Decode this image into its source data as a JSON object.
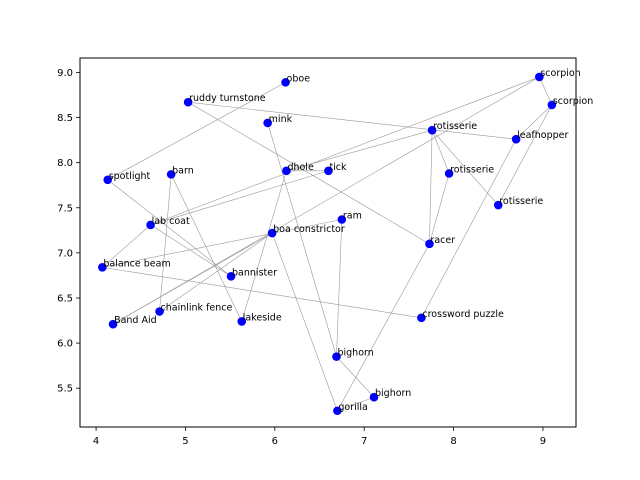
{
  "chart_data": {
    "type": "scatter",
    "title": "",
    "xlabel": "",
    "ylabel": "",
    "xlim": [
      3.82,
      9.37
    ],
    "ylim": [
      5.07,
      9.16
    ],
    "xticks": [
      4,
      5,
      6,
      7,
      8,
      9
    ],
    "yticks": [
      5.5,
      6.0,
      6.5,
      7.0,
      7.5,
      8.0,
      8.5,
      9.0
    ],
    "xtick_labels": [
      "4",
      "5",
      "6",
      "7",
      "8",
      "9"
    ],
    "ytick_labels": [
      "5.5",
      "6.0",
      "6.5",
      "7.0",
      "7.5",
      "8.0",
      "8.5",
      "9.0"
    ],
    "marker_color": "#0000ff",
    "line_color": "#999999",
    "grid": false,
    "points": [
      {
        "label": "oboe",
        "x": 6.12,
        "y": 8.89
      },
      {
        "label": "ruddy turnstone",
        "x": 5.03,
        "y": 8.67
      },
      {
        "label": "mink",
        "x": 5.92,
        "y": 8.44
      },
      {
        "label": "scorpion",
        "x": 8.96,
        "y": 8.95
      },
      {
        "label": "scorpion",
        "x": 9.1,
        "y": 8.64
      },
      {
        "label": "rotisserie",
        "x": 7.76,
        "y": 8.36
      },
      {
        "label": "leafhopper",
        "x": 8.7,
        "y": 8.26
      },
      {
        "label": "spotlight",
        "x": 4.13,
        "y": 7.81
      },
      {
        "label": "barn",
        "x": 4.84,
        "y": 7.87
      },
      {
        "label": "dhole",
        "x": 6.13,
        "y": 7.91
      },
      {
        "label": "tick",
        "x": 6.6,
        "y": 7.91
      },
      {
        "label": "rotisserie",
        "x": 7.95,
        "y": 7.88
      },
      {
        "label": "rotisserie",
        "x": 8.5,
        "y": 7.53
      },
      {
        "label": "lab coat",
        "x": 4.61,
        "y": 7.31
      },
      {
        "label": "ram",
        "x": 6.75,
        "y": 7.37
      },
      {
        "label": "boa constrictor",
        "x": 5.97,
        "y": 7.22
      },
      {
        "label": "racer",
        "x": 7.73,
        "y": 7.1
      },
      {
        "label": "balance beam",
        "x": 4.07,
        "y": 6.84
      },
      {
        "label": "bannister",
        "x": 5.51,
        "y": 6.74
      },
      {
        "label": "chainlink fence",
        "x": 4.71,
        "y": 6.35
      },
      {
        "label": "Band Aid",
        "x": 4.19,
        "y": 6.21
      },
      {
        "label": "lakeside",
        "x": 5.63,
        "y": 6.24
      },
      {
        "label": "crossword puzzle",
        "x": 7.64,
        "y": 6.28
      },
      {
        "label": "bighorn",
        "x": 6.69,
        "y": 5.85
      },
      {
        "label": "bighorn",
        "x": 7.11,
        "y": 5.4
      },
      {
        "label": "gorilla",
        "x": 6.7,
        "y": 5.25
      }
    ],
    "edges": [
      [
        0,
        7
      ],
      [
        1,
        16
      ],
      [
        1,
        6
      ],
      [
        2,
        23
      ],
      [
        3,
        4
      ],
      [
        3,
        13
      ],
      [
        3,
        20
      ],
      [
        4,
        6
      ],
      [
        5,
        12
      ],
      [
        5,
        9
      ],
      [
        5,
        16
      ],
      [
        6,
        22
      ],
      [
        7,
        18
      ],
      [
        8,
        21
      ],
      [
        8,
        19
      ],
      [
        9,
        10
      ],
      [
        10,
        13
      ],
      [
        11,
        16
      ],
      [
        11,
        5
      ],
      [
        12,
        4
      ],
      [
        13,
        17
      ],
      [
        14,
        17
      ],
      [
        14,
        23
      ],
      [
        15,
        25
      ],
      [
        15,
        20
      ],
      [
        16,
        25
      ],
      [
        17,
        22
      ],
      [
        18,
        13
      ],
      [
        19,
        15
      ],
      [
        21,
        9
      ],
      [
        23,
        24
      ],
      [
        24,
        25
      ]
    ]
  }
}
